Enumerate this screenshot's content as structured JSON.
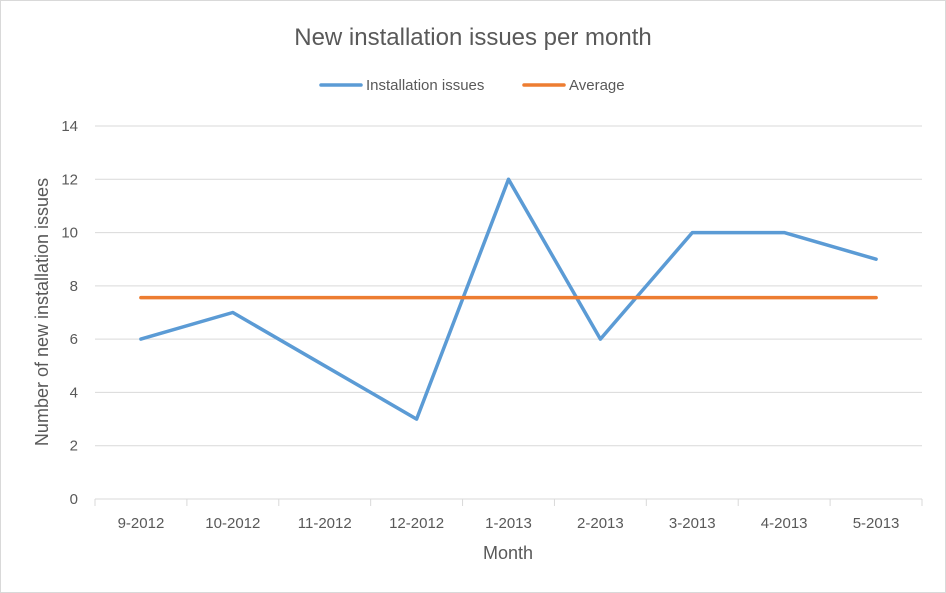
{
  "chart_data": {
    "type": "line",
    "title": "New installation issues per month",
    "xlabel": "Month",
    "ylabel": "Number of new installation issues",
    "categories": [
      "9-2012",
      "10-2012",
      "11-2012",
      "12-2012",
      "1-2013",
      "2-2013",
      "3-2013",
      "4-2013",
      "5-2013"
    ],
    "series": [
      {
        "name": "Installation issues",
        "values": [
          6,
          7,
          5,
          3,
          12,
          6,
          10,
          10,
          9
        ],
        "color": "#5b9bd5"
      },
      {
        "name": "Average",
        "values": [
          7.56,
          7.56,
          7.56,
          7.56,
          7.56,
          7.56,
          7.56,
          7.56,
          7.56
        ],
        "color": "#ed7d31"
      }
    ],
    "ylim": [
      0,
      14
    ],
    "yticks": [
      "0",
      "2",
      "4",
      "6",
      "8",
      "10",
      "12",
      "14"
    ],
    "grid": true,
    "legend": "top"
  }
}
